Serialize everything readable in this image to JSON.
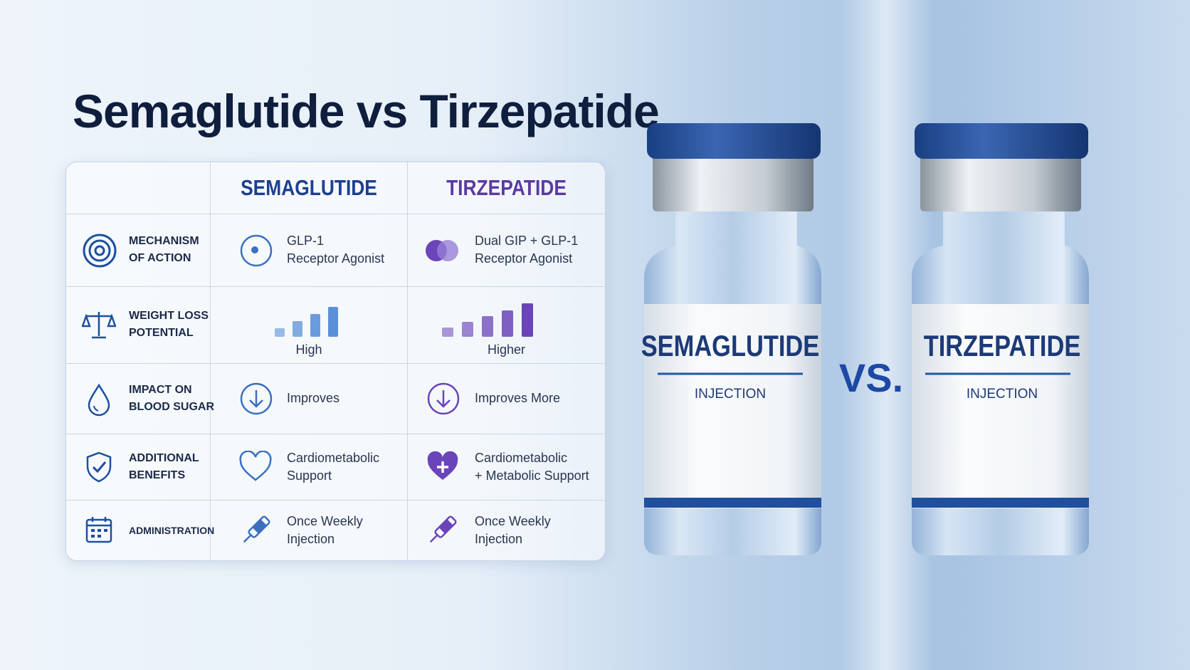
{
  "header": {
    "title": "Semaglutide vs Tirzepatide"
  },
  "table": {
    "columns": [
      "SEMAGLUTIDE",
      "TIRZEPATIDE"
    ],
    "rows": [
      {
        "label": [
          "MECHANISM",
          "OF ACTION"
        ],
        "semaglutide": [
          "GLP-1",
          "Receptor Agonist"
        ],
        "tirzepatide": [
          "Dual GIP + GLP-1",
          "Receptor Agonist"
        ]
      },
      {
        "label": [
          "WEIGHT LOSS",
          "POTENTIAL"
        ],
        "semaglutide": [
          "High"
        ],
        "tirzepatide": [
          "Higher"
        ]
      },
      {
        "label": [
          "IMPACT ON",
          "BLOOD SUGAR"
        ],
        "semaglutide": [
          "Improves"
        ],
        "tirzepatide": [
          "Improves More"
        ]
      },
      {
        "label": [
          "ADDITIONAL",
          "BENEFITS"
        ],
        "semaglutide": [
          "Cardiometabolic",
          "Support"
        ],
        "tirzepatide": [
          "Cardiometabolic",
          "+ Metabolic Support"
        ]
      },
      {
        "label": [
          "ADMINISTRATION"
        ],
        "semaglutide": [
          "Once Weekly",
          "Injection"
        ],
        "tirzepatide": [
          "Once Weekly",
          "Injection"
        ]
      }
    ]
  },
  "vials": [
    {
      "name": "SEMAGLUTIDE",
      "form": "INJECTION"
    },
    {
      "name": "TIRZEPATIDE",
      "form": "INJECTION"
    }
  ],
  "separator": "VS."
}
